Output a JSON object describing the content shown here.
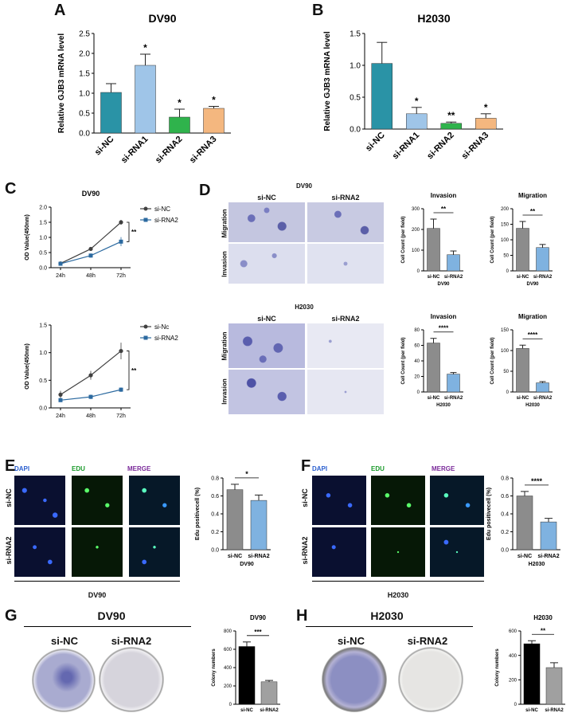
{
  "panel_letters": [
    "A",
    "B",
    "C",
    "D",
    "E",
    "F",
    "G",
    "H"
  ],
  "chart_data": [
    {
      "id": "A",
      "type": "bar",
      "title": "DV90",
      "ylabel": "Relative GJB3 mRNA level",
      "categories": [
        "si-NC",
        "si-RNA1",
        "si-RNA2",
        "si-RNA3"
      ],
      "values": [
        1.02,
        1.7,
        0.4,
        0.62
      ],
      "errors": [
        0.22,
        0.28,
        0.2,
        0.05
      ],
      "significance": [
        "",
        "*",
        "*",
        "*"
      ],
      "ylim": [
        0,
        2.5
      ],
      "yticks": [
        "0.0",
        "0.5",
        "1.0",
        "1.5",
        "2.0",
        "2.5"
      ],
      "colors": [
        "#2a93a6",
        "#9fc5e8",
        "#2fb34c",
        "#f4b77f"
      ]
    },
    {
      "id": "B",
      "type": "bar",
      "title": "H2030",
      "ylabel": "Relative GJB3 mRNA level",
      "categories": [
        "si-NC",
        "si-RNA1",
        "si-RNA2",
        "si-RNA3"
      ],
      "values": [
        1.03,
        0.24,
        0.09,
        0.17
      ],
      "errors": [
        0.33,
        0.1,
        0.02,
        0.07
      ],
      "significance": [
        "",
        "*",
        "**",
        "*"
      ],
      "ylim": [
        0,
        1.5
      ],
      "yticks": [
        "0.0",
        "0.5",
        "1.0",
        "1.5"
      ],
      "colors": [
        "#2a93a6",
        "#9fc5e8",
        "#2fb34c",
        "#f4b77f"
      ]
    },
    {
      "id": "C1",
      "type": "line",
      "title": "DV90",
      "ylabel": "OD Value(450nm)",
      "x": [
        "24h",
        "48h",
        "72h"
      ],
      "series": [
        {
          "name": "si-NC",
          "values": [
            0.14,
            0.62,
            1.5
          ],
          "errors": [
            0.03,
            0.05,
            0.08
          ],
          "color": "#404040",
          "marker": "circle"
        },
        {
          "name": "si-RNA2",
          "values": [
            0.13,
            0.4,
            0.86
          ],
          "errors": [
            0.03,
            0.07,
            0.15
          ],
          "color": "#2c6aa0",
          "marker": "square"
        }
      ],
      "ylim": [
        0,
        2.0
      ],
      "yticks": [
        "0.0",
        "0.5",
        "1.0",
        "1.5",
        "2.0"
      ],
      "significance": "**"
    },
    {
      "id": "C2",
      "type": "line",
      "title": "",
      "ylabel": "OD Value(450nm)",
      "x": [
        "24h",
        "48h",
        "72h"
      ],
      "series": [
        {
          "name": "si-Nc",
          "values": [
            0.24,
            0.59,
            1.03
          ],
          "errors": [
            0.07,
            0.08,
            0.15
          ],
          "color": "#404040",
          "marker": "circle"
        },
        {
          "name": "si-RNA2",
          "values": [
            0.14,
            0.2,
            0.33
          ],
          "errors": [
            0.03,
            0.04,
            0.04
          ],
          "color": "#2c6aa0",
          "marker": "square"
        }
      ],
      "ylim": [
        0,
        1.5
      ],
      "yticks": [
        "0.0",
        "0.5",
        "1.0",
        "1.5"
      ],
      "significance": "**"
    },
    {
      "id": "D1",
      "type": "bar",
      "title": "Invasion",
      "ylabel": "Cell Count (per field)",
      "xlabel": "DV90",
      "categories": [
        "si-NC",
        "si-RNA2"
      ],
      "values": [
        205,
        78
      ],
      "errors": [
        45,
        18
      ],
      "significance": "**",
      "ylim": [
        0,
        300
      ],
      "yticks": [
        "0",
        "100",
        "200",
        "300"
      ],
      "colors": [
        "#8c8c8c",
        "#7fb2e0"
      ]
    },
    {
      "id": "D2",
      "type": "bar",
      "title": "Migration",
      "ylabel": "Cell Count (per field)",
      "xlabel": "DV90",
      "categories": [
        "si-NC",
        "si-RNA2"
      ],
      "values": [
        137,
        75
      ],
      "errors": [
        22,
        10
      ],
      "significance": "**",
      "ylim": [
        0,
        200
      ],
      "yticks": [
        "0",
        "50",
        "100",
        "150",
        "200"
      ],
      "colors": [
        "#8c8c8c",
        "#7fb2e0"
      ]
    },
    {
      "id": "D3",
      "type": "bar",
      "title": "Invasion",
      "ylabel": "Cell Count (per field)",
      "xlabel": "H2030",
      "categories": [
        "si-NC",
        "si-RNA2"
      ],
      "values": [
        63,
        23
      ],
      "errors": [
        6,
        2
      ],
      "significance": "****",
      "ylim": [
        0,
        80
      ],
      "yticks": [
        "0",
        "20",
        "40",
        "60",
        "80"
      ],
      "colors": [
        "#8c8c8c",
        "#7fb2e0"
      ]
    },
    {
      "id": "D4",
      "type": "bar",
      "title": "Migration",
      "ylabel": "Cell Count (per field)",
      "xlabel": "H2030",
      "categories": [
        "si-NC",
        "si-RNA2"
      ],
      "values": [
        105,
        22
      ],
      "errors": [
        8,
        3
      ],
      "significance": "****",
      "ylim": [
        0,
        150
      ],
      "yticks": [
        "0",
        "50",
        "100",
        "150"
      ],
      "colors": [
        "#8c8c8c",
        "#7fb2e0"
      ]
    },
    {
      "id": "E",
      "type": "bar",
      "title": "",
      "ylabel": "Edu positivecell (%)",
      "xlabel": "DV90",
      "categories": [
        "si-NC",
        "si-RNA2"
      ],
      "values": [
        0.67,
        0.55
      ],
      "errors": [
        0.06,
        0.06
      ],
      "significance": "*",
      "ylim": [
        0,
        0.8
      ],
      "yticks": [
        "0.0",
        "0.2",
        "0.4",
        "0.6",
        "0.8"
      ],
      "colors": [
        "#8c8c8c",
        "#7fb2e0"
      ]
    },
    {
      "id": "F",
      "type": "bar",
      "title": "",
      "ylabel": "Edu positivecell (%)",
      "xlabel": "H2030",
      "categories": [
        "si-NC",
        "si-RNA2"
      ],
      "values": [
        0.6,
        0.31
      ],
      "errors": [
        0.05,
        0.04
      ],
      "significance": "****",
      "ylim": [
        0,
        0.8
      ],
      "yticks": [
        "0.0",
        "0.2",
        "0.4",
        "0.6",
        "0.8"
      ],
      "colors": [
        "#8c8c8c",
        "#7fb2e0"
      ]
    },
    {
      "id": "G",
      "type": "bar",
      "title": "DV90",
      "ylabel": "Colony numbers",
      "categories": [
        "si-NC",
        "si-RNA2"
      ],
      "values": [
        630,
        245
      ],
      "errors": [
        50,
        15
      ],
      "significance": "***",
      "ylim": [
        0,
        800
      ],
      "yticks": [
        "0",
        "200",
        "400",
        "600",
        "800"
      ],
      "colors": [
        "#000000",
        "#a0a0a0"
      ]
    },
    {
      "id": "H",
      "type": "bar",
      "title": "H2030",
      "ylabel": "Colony numbers",
      "categories": [
        "si-NC",
        "si-RNA2"
      ],
      "values": [
        495,
        300
      ],
      "errors": [
        25,
        40
      ],
      "significance": "**",
      "ylim": [
        0,
        600
      ],
      "yticks": [
        "0",
        "200",
        "400",
        "600"
      ],
      "colors": [
        "#000000",
        "#a0a0a0"
      ]
    }
  ],
  "transwell": {
    "dv90_title": "DV90",
    "h2030_title": "H2030",
    "columns": [
      "si-NC",
      "si-RNA2"
    ],
    "rows": [
      "Migration",
      "Invasion"
    ]
  },
  "edu": {
    "columns": [
      "DAPI",
      "EDU",
      "MERGE"
    ],
    "rows": [
      "si-NC",
      "si-RNA2"
    ],
    "dv90_caption": "DV90",
    "h2030_caption": "H2030"
  },
  "colony": {
    "g_title": "DV90",
    "h_title": "H2030",
    "labels": [
      "si-NC",
      "si-RNA2"
    ]
  }
}
